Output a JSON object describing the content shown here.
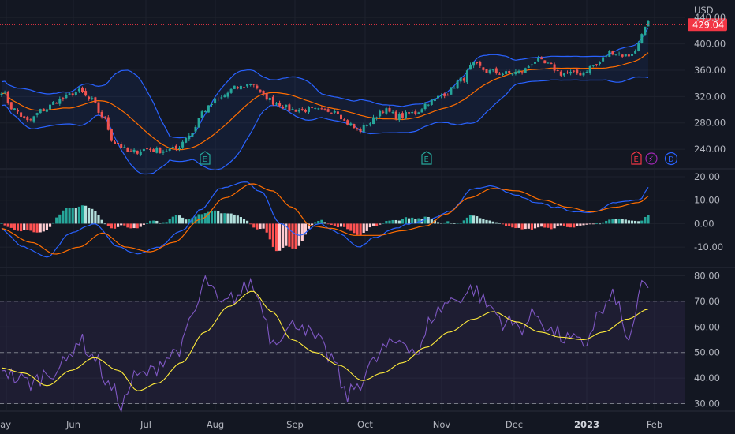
{
  "chart_data": [
    {
      "type": "candlestick",
      "currency": "USD",
      "last_price": "429.04",
      "ylim": [
        215,
        445
      ],
      "yticks": [
        "440.00",
        "400.00",
        "360.00",
        "320.00",
        "280.00",
        "240.00"
      ],
      "overlays": [
        "Bollinger Bands (20, 2)",
        "Moving Average"
      ],
      "earnings_markers": [
        "E",
        "E",
        "E"
      ],
      "dividend_marker": "D",
      "split_marker": "⚡",
      "colors": {
        "up": "#26a69a",
        "down": "#ef5350",
        "bands": "#2962ff",
        "basis": "#ff6d00",
        "last_price": "#f23645"
      },
      "anchors": [
        [
          0,
          330
        ],
        [
          18,
          300
        ],
        [
          35,
          282
        ],
        [
          55,
          300
        ],
        [
          75,
          315
        ],
        [
          100,
          328
        ],
        [
          115,
          315
        ],
        [
          130,
          290
        ],
        [
          145,
          250
        ],
        [
          165,
          235
        ],
        [
          185,
          240
        ],
        [
          205,
          238
        ],
        [
          222,
          240
        ],
        [
          240,
          262
        ],
        [
          260,
          300
        ],
        [
          275,
          315
        ],
        [
          300,
          333
        ],
        [
          320,
          340
        ],
        [
          335,
          320
        ],
        [
          350,
          310
        ],
        [
          370,
          300
        ],
        [
          390,
          300
        ],
        [
          410,
          298
        ],
        [
          425,
          300
        ],
        [
          440,
          280
        ],
        [
          455,
          268
        ],
        [
          468,
          280
        ],
        [
          485,
          300
        ],
        [
          505,
          290
        ],
        [
          525,
          295
        ],
        [
          545,
          312
        ],
        [
          565,
          325
        ],
        [
          585,
          345
        ],
        [
          600,
          368
        ],
        [
          620,
          358
        ],
        [
          640,
          355
        ],
        [
          660,
          357
        ],
        [
          680,
          375
        ],
        [
          695,
          368
        ],
        [
          712,
          355
        ],
        [
          735,
          355
        ],
        [
          755,
          368
        ],
        [
          775,
          388
        ],
        [
          795,
          382
        ],
        [
          805,
          388
        ],
        [
          815,
          420
        ],
        [
          823,
          432
        ]
      ]
    },
    {
      "type": "macd",
      "ylim": [
        -17,
        22
      ],
      "yticks": [
        "20.00",
        "10.00",
        "0.00",
        "-10.00"
      ],
      "colors": {
        "macd": "#2962ff",
        "signal": "#ff6d00",
        "hist_up_strong": "#26a69a",
        "hist_up_weak": "#b2dfdb",
        "hist_down_strong": "#ff5252",
        "hist_down_weak": "#ffcdd2"
      },
      "macd_anchors": [
        [
          0,
          -2
        ],
        [
          30,
          -10
        ],
        [
          60,
          -14
        ],
        [
          90,
          -4
        ],
        [
          120,
          0
        ],
        [
          150,
          -10
        ],
        [
          175,
          -13
        ],
        [
          200,
          -10
        ],
        [
          230,
          -3
        ],
        [
          255,
          6
        ],
        [
          280,
          15
        ],
        [
          310,
          18
        ],
        [
          330,
          14
        ],
        [
          355,
          0
        ],
        [
          380,
          -5
        ],
        [
          405,
          0
        ],
        [
          430,
          -4
        ],
        [
          455,
          -10
        ],
        [
          475,
          -6
        ],
        [
          500,
          -2
        ],
        [
          520,
          0
        ],
        [
          545,
          2
        ],
        [
          570,
          5
        ],
        [
          600,
          15
        ],
        [
          625,
          16
        ],
        [
          655,
          12
        ],
        [
          680,
          9
        ],
        [
          705,
          7
        ],
        [
          730,
          5
        ],
        [
          755,
          5
        ],
        [
          780,
          9
        ],
        [
          810,
          10
        ],
        [
          825,
          16
        ]
      ],
      "signal_anchors": [
        [
          0,
          -2
        ],
        [
          40,
          -8
        ],
        [
          70,
          -13
        ],
        [
          100,
          -10
        ],
        [
          130,
          -4
        ],
        [
          160,
          -10
        ],
        [
          190,
          -12
        ],
        [
          220,
          -8
        ],
        [
          255,
          2
        ],
        [
          285,
          11
        ],
        [
          320,
          17
        ],
        [
          345,
          14
        ],
        [
          370,
          7
        ],
        [
          395,
          -1
        ],
        [
          420,
          -2
        ],
        [
          450,
          -5
        ],
        [
          480,
          -5
        ],
        [
          510,
          -3
        ],
        [
          540,
          -1
        ],
        [
          565,
          4
        ],
        [
          595,
          11
        ],
        [
          625,
          15
        ],
        [
          655,
          14
        ],
        [
          690,
          10
        ],
        [
          720,
          7
        ],
        [
          750,
          5
        ],
        [
          780,
          7
        ],
        [
          810,
          9
        ],
        [
          825,
          12
        ]
      ]
    },
    {
      "type": "rsi",
      "ylim": [
        28,
        82
      ],
      "yticks": [
        "80.00",
        "70.00",
        "60.00",
        "50.00",
        "40.00",
        "30.00"
      ],
      "upper_band": 70,
      "middle_band": 50,
      "lower_band": 30,
      "colors": {
        "rsi": "#7e57c2",
        "ma": "#ffeb3b",
        "band_fill": "rgba(126,87,194,0.10)"
      },
      "rsi_anchors": [
        [
          0,
          45
        ],
        [
          20,
          40
        ],
        [
          40,
          38
        ],
        [
          60,
          42
        ],
        [
          80,
          45
        ],
        [
          100,
          55
        ],
        [
          120,
          48
        ],
        [
          140,
          36
        ],
        [
          155,
          30
        ],
        [
          170,
          40
        ],
        [
          190,
          42
        ],
        [
          210,
          48
        ],
        [
          230,
          52
        ],
        [
          245,
          65
        ],
        [
          262,
          78
        ],
        [
          280,
          68
        ],
        [
          300,
          72
        ],
        [
          318,
          77
        ],
        [
          330,
          70
        ],
        [
          345,
          55
        ],
        [
          360,
          58
        ],
        [
          380,
          62
        ],
        [
          400,
          55
        ],
        [
          420,
          48
        ],
        [
          440,
          33
        ],
        [
          455,
          38
        ],
        [
          470,
          45
        ],
        [
          490,
          52
        ],
        [
          510,
          55
        ],
        [
          530,
          50
        ],
        [
          550,
          65
        ],
        [
          570,
          70
        ],
        [
          585,
          72
        ],
        [
          600,
          75
        ],
        [
          620,
          68
        ],
        [
          640,
          62
        ],
        [
          660,
          60
        ],
        [
          680,
          65
        ],
        [
          700,
          58
        ],
        [
          720,
          55
        ],
        [
          740,
          53
        ],
        [
          760,
          65
        ],
        [
          780,
          72
        ],
        [
          795,
          55
        ],
        [
          805,
          62
        ],
        [
          815,
          78
        ],
        [
          823,
          73
        ]
      ],
      "ma_anchors": [
        [
          0,
          44
        ],
        [
          30,
          42
        ],
        [
          60,
          37
        ],
        [
          90,
          43
        ],
        [
          120,
          48
        ],
        [
          150,
          43
        ],
        [
          175,
          35
        ],
        [
          200,
          38
        ],
        [
          230,
          46
        ],
        [
          260,
          58
        ],
        [
          290,
          68
        ],
        [
          320,
          74
        ],
        [
          345,
          66
        ],
        [
          370,
          55
        ],
        [
          400,
          50
        ],
        [
          430,
          45
        ],
        [
          460,
          39
        ],
        [
          485,
          42
        ],
        [
          510,
          46
        ],
        [
          540,
          52
        ],
        [
          570,
          58
        ],
        [
          600,
          63
        ],
        [
          625,
          66
        ],
        [
          655,
          62
        ],
        [
          685,
          58
        ],
        [
          710,
          56
        ],
        [
          740,
          55
        ],
        [
          765,
          58
        ],
        [
          795,
          63
        ],
        [
          823,
          67
        ]
      ]
    }
  ],
  "x_axis": {
    "labels": [
      "ay",
      "Jun",
      "Jul",
      "Aug",
      "Sep",
      "Oct",
      "Nov",
      "Dec",
      "2023",
      "Feb"
    ],
    "bold_label": "2023"
  }
}
